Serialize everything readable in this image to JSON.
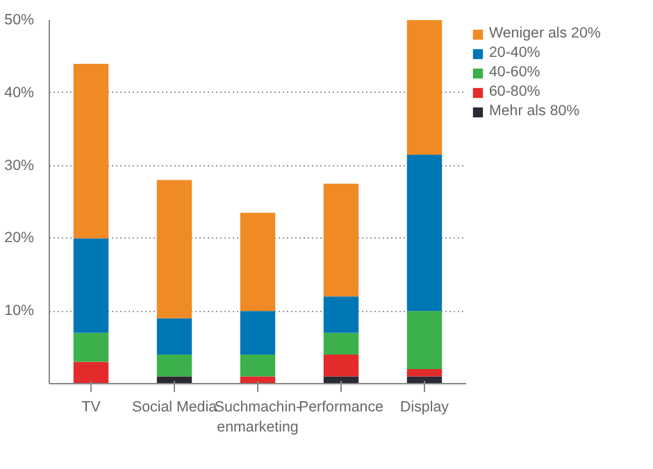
{
  "chart_data": {
    "type": "bar",
    "stacked": true,
    "categories": [
      "TV",
      "Social Media",
      "Suchmachin-\nenmarketing",
      "Performance",
      "Display"
    ],
    "series": [
      {
        "name": "Mehr als 80%",
        "color": "#2a2a35",
        "values": [
          0,
          1,
          0,
          1,
          1
        ]
      },
      {
        "name": "60-80%",
        "color": "#e32b2b",
        "values": [
          3,
          0,
          1,
          3,
          1
        ]
      },
      {
        "name": "40-60%",
        "color": "#3cb04a",
        "values": [
          4,
          3,
          3,
          3,
          8
        ]
      },
      {
        "name": "20-40%",
        "color": "#0077b5",
        "values": [
          13,
          5,
          6,
          5,
          21.5
        ]
      },
      {
        "name": "Weniger als 20%",
        "color": "#f08a24",
        "values": [
          24,
          19,
          13.5,
          15.5,
          18.5
        ]
      }
    ],
    "ylim": [
      0,
      50
    ],
    "yticks": [
      {
        "value": 0,
        "label": null
      },
      {
        "value": 10,
        "label": "10%"
      },
      {
        "value": 20,
        "label": "20%"
      },
      {
        "value": 30,
        "label": "30%"
      },
      {
        "value": 40,
        "label": "40%"
      },
      {
        "value": 50,
        "label": "50%"
      }
    ],
    "grid": "y",
    "legend": "top right"
  }
}
